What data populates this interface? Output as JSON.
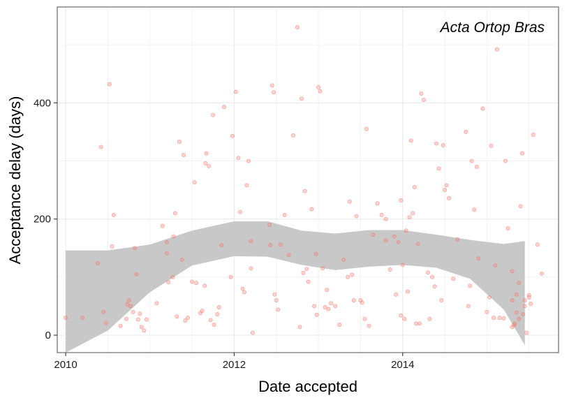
{
  "chart_data": {
    "type": "scatter",
    "title": "",
    "annotation": "Acta Ortop Bras",
    "xlabel": "Date accepted",
    "ylabel": "Acceptance delay (days)",
    "xlim": [
      2009.9,
      2015.85
    ],
    "ylim": [
      -30,
      565
    ],
    "x_ticks": [
      {
        "value": 2010,
        "label": "2010"
      },
      {
        "value": 2012,
        "label": "2012"
      },
      {
        "value": 2014,
        "label": "2014"
      }
    ],
    "y_ticks": [
      {
        "value": 0,
        "label": "0"
      },
      {
        "value": 200,
        "label": "200"
      },
      {
        "value": 400,
        "label": "400"
      }
    ],
    "grid": true,
    "colors": {
      "points": "#f8766d",
      "smooth_band": "#c8c8c8",
      "grid": "#ebebeb",
      "panel_border": "#7f7f7f"
    },
    "smooth": {
      "x": [
        2010.0,
        2010.5,
        2011.0,
        2011.5,
        2012.0,
        2012.4,
        2012.8,
        2013.2,
        2013.6,
        2014.0,
        2014.4,
        2014.8,
        2015.2,
        2015.45
      ],
      "upper": [
        146,
        146,
        156,
        180,
        196,
        196,
        180,
        175,
        181,
        181,
        173,
        164,
        157,
        162
      ],
      "lower": [
        -32,
        8,
        74,
        120,
        136,
        135,
        121,
        112,
        118,
        121,
        116,
        97,
        44,
        -17
      ]
    },
    "points": [
      [
        2010.0,
        30
      ],
      [
        2010.2,
        30
      ],
      [
        2010.38,
        124
      ],
      [
        2010.42,
        324
      ],
      [
        2010.45,
        40
      ],
      [
        2010.48,
        21
      ],
      [
        2010.52,
        432
      ],
      [
        2010.55,
        153
      ],
      [
        2010.57,
        207
      ],
      [
        2010.65,
        16
      ],
      [
        2010.72,
        28
      ],
      [
        2010.73,
        53
      ],
      [
        2010.75,
        60
      ],
      [
        2010.77,
        50
      ],
      [
        2010.8,
        40
      ],
      [
        2010.82,
        150
      ],
      [
        2010.84,
        105
      ],
      [
        2010.86,
        27
      ],
      [
        2010.88,
        37
      ],
      [
        2010.9,
        14
      ],
      [
        2010.93,
        8
      ],
      [
        2010.96,
        27
      ],
      [
        2011.08,
        55
      ],
      [
        2011.15,
        188
      ],
      [
        2011.2,
        141
      ],
      [
        2011.2,
        160
      ],
      [
        2011.22,
        91
      ],
      [
        2011.27,
        100
      ],
      [
        2011.28,
        170
      ],
      [
        2011.3,
        210
      ],
      [
        2011.32,
        32
      ],
      [
        2011.35,
        333
      ],
      [
        2011.38,
        130
      ],
      [
        2011.4,
        310
      ],
      [
        2011.42,
        25
      ],
      [
        2011.45,
        30
      ],
      [
        2011.5,
        92
      ],
      [
        2011.53,
        263
      ],
      [
        2011.55,
        90
      ],
      [
        2011.6,
        38
      ],
      [
        2011.62,
        42
      ],
      [
        2011.65,
        85
      ],
      [
        2011.66,
        296
      ],
      [
        2011.67,
        313
      ],
      [
        2011.7,
        291
      ],
      [
        2011.72,
        26
      ],
      [
        2011.75,
        379
      ],
      [
        2011.76,
        18
      ],
      [
        2011.8,
        36
      ],
      [
        2011.82,
        48
      ],
      [
        2011.85,
        155
      ],
      [
        2011.88,
        393
      ],
      [
        2011.96,
        100
      ],
      [
        2011.98,
        343
      ],
      [
        2012.02,
        419
      ],
      [
        2012.05,
        305
      ],
      [
        2012.07,
        212
      ],
      [
        2012.1,
        80
      ],
      [
        2012.12,
        74
      ],
      [
        2012.15,
        258
      ],
      [
        2012.17,
        300
      ],
      [
        2012.2,
        162
      ],
      [
        2012.2,
        115
      ],
      [
        2012.22,
        4
      ],
      [
        2012.42,
        190
      ],
      [
        2012.43,
        155
      ],
      [
        2012.45,
        430
      ],
      [
        2012.47,
        418
      ],
      [
        2012.48,
        70
      ],
      [
        2012.5,
        60
      ],
      [
        2012.52,
        44
      ],
      [
        2012.55,
        156
      ],
      [
        2012.6,
        207
      ],
      [
        2012.65,
        138
      ],
      [
        2012.7,
        344
      ],
      [
        2012.75,
        530
      ],
      [
        2012.78,
        14
      ],
      [
        2012.8,
        407
      ],
      [
        2012.82,
        107
      ],
      [
        2012.84,
        248
      ],
      [
        2012.86,
        114
      ],
      [
        2012.88,
        92
      ],
      [
        2012.92,
        217
      ],
      [
        2012.95,
        50
      ],
      [
        2012.97,
        140
      ],
      [
        2012.98,
        35
      ],
      [
        2013.0,
        427
      ],
      [
        2013.02,
        420
      ],
      [
        2013.05,
        115
      ],
      [
        2013.08,
        48
      ],
      [
        2013.1,
        78
      ],
      [
        2013.12,
        45
      ],
      [
        2013.15,
        55
      ],
      [
        2013.2,
        50
      ],
      [
        2013.25,
        18
      ],
      [
        2013.3,
        130
      ],
      [
        2013.35,
        100
      ],
      [
        2013.37,
        230
      ],
      [
        2013.4,
        104
      ],
      [
        2013.42,
        60
      ],
      [
        2013.45,
        205
      ],
      [
        2013.5,
        60
      ],
      [
        2013.52,
        56
      ],
      [
        2013.55,
        28
      ],
      [
        2013.57,
        355
      ],
      [
        2013.6,
        16
      ],
      [
        2013.65,
        173
      ],
      [
        2013.7,
        227
      ],
      [
        2013.75,
        207
      ],
      [
        2013.8,
        200
      ],
      [
        2013.8,
        163
      ],
      [
        2013.85,
        113
      ],
      [
        2013.9,
        170
      ],
      [
        2013.92,
        70
      ],
      [
        2013.95,
        160
      ],
      [
        2013.98,
        232
      ],
      [
        2013.98,
        34
      ],
      [
        2014.0,
        121
      ],
      [
        2014.02,
        28
      ],
      [
        2014.04,
        180
      ],
      [
        2014.06,
        75
      ],
      [
        2014.08,
        203
      ],
      [
        2014.1,
        335
      ],
      [
        2014.12,
        210
      ],
      [
        2014.14,
        255
      ],
      [
        2014.16,
        20
      ],
      [
        2014.18,
        157
      ],
      [
        2014.2,
        20
      ],
      [
        2014.22,
        416
      ],
      [
        2014.25,
        405
      ],
      [
        2014.3,
        108
      ],
      [
        2014.32,
        28
      ],
      [
        2014.35,
        100
      ],
      [
        2014.38,
        84
      ],
      [
        2014.4,
        330
      ],
      [
        2014.43,
        287
      ],
      [
        2014.46,
        60
      ],
      [
        2014.48,
        327
      ],
      [
        2014.5,
        250
      ],
      [
        2014.52,
        258
      ],
      [
        2014.55,
        236
      ],
      [
        2014.6,
        97
      ],
      [
        2014.65,
        165
      ],
      [
        2014.75,
        350
      ],
      [
        2014.78,
        50
      ],
      [
        2014.8,
        85
      ],
      [
        2014.82,
        300
      ],
      [
        2014.85,
        216
      ],
      [
        2014.88,
        290
      ],
      [
        2014.9,
        132
      ],
      [
        2014.95,
        390
      ],
      [
        2015.0,
        40
      ],
      [
        2015.03,
        65
      ],
      [
        2015.05,
        326
      ],
      [
        2015.08,
        30
      ],
      [
        2015.1,
        120
      ],
      [
        2015.12,
        492
      ],
      [
        2015.15,
        30
      ],
      [
        2015.2,
        29
      ],
      [
        2015.22,
        300
      ],
      [
        2015.25,
        184
      ],
      [
        2015.3,
        60
      ],
      [
        2015.32,
        17
      ],
      [
        2015.35,
        70
      ],
      [
        2015.38,
        28
      ],
      [
        2015.4,
        222
      ],
      [
        2015.42,
        313
      ],
      [
        2015.45,
        60
      ],
      [
        2015.47,
        4
      ],
      [
        2015.5,
        69
      ],
      [
        2015.52,
        54
      ],
      [
        2015.55,
        345
      ],
      [
        2015.6,
        156
      ],
      [
        2015.65,
        106
      ],
      [
        2015.3,
        14
      ],
      [
        2015.35,
        39
      ],
      [
        2015.45,
        50
      ],
      [
        2015.5,
        65
      ],
      [
        2015.38,
        90
      ],
      [
        2015.3,
        110
      ],
      [
        2015.33,
        20
      ],
      [
        2015.43,
        36
      ]
    ]
  }
}
